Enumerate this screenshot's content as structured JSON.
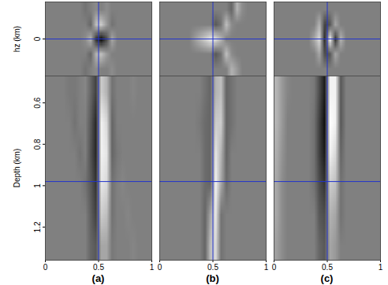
{
  "chart_data": [
    {
      "type": "image",
      "title": "(a)",
      "xlim": [
        0,
        1
      ],
      "xticks": [
        0,
        0.5,
        1
      ],
      "crosshair_x": 0.5,
      "sections": [
        {
          "ylabel": "hz (km)",
          "ylim": [
            -0.35,
            0.35
          ],
          "yticks": [
            0
          ],
          "tick_labels": "y",
          "crosshair_y": 0,
          "cells": [
            [
              0,
              0,
              0,
              0,
              0,
              0,
              0,
              -0.1,
              0,
              0.1,
              0,
              0.1,
              0,
              0,
              0,
              0,
              0,
              0,
              0,
              0
            ],
            [
              0,
              0,
              0,
              0,
              0,
              0,
              0,
              0,
              -0.2,
              0.5,
              0.6,
              0.2,
              -0.1,
              0,
              0,
              0,
              0,
              0,
              0,
              0
            ],
            [
              0,
              0,
              0,
              0,
              0,
              0,
              0,
              0.1,
              0.4,
              -0.6,
              -0.9,
              -0.4,
              0.3,
              0,
              0,
              0,
              0,
              0,
              0,
              0
            ],
            [
              0,
              0,
              0,
              0,
              0,
              0,
              0,
              0,
              -0.2,
              0.4,
              0.5,
              0.2,
              0,
              0,
              0,
              0,
              0,
              0,
              0,
              0
            ],
            [
              0,
              0,
              0,
              0,
              0,
              0,
              0,
              -0.1,
              0,
              0.1,
              0,
              0,
              0.1,
              0,
              0,
              0,
              0,
              0,
              0,
              0
            ]
          ]
        },
        {
          "ylabel": "Depth (km)",
          "ylim": [
            0.47,
            1.36
          ],
          "yticks": [
            0.6,
            0.8,
            1,
            1.2
          ],
          "crosshair_y": 0.98,
          "cells": [
            [
              0,
              0,
              0,
              0,
              -0.05,
              -0.05,
              0,
              0.05,
              -0.2,
              -0.5,
              0.6,
              0.4,
              -0.1,
              0,
              0,
              0,
              0.05,
              0,
              0,
              0
            ],
            [
              0,
              0,
              0,
              0,
              0,
              -0.1,
              0,
              0,
              -0.3,
              -0.7,
              0.9,
              0.7,
              -0.2,
              0,
              0,
              0,
              0,
              0,
              0,
              0
            ],
            [
              0,
              0,
              0,
              0,
              0,
              0,
              -0.1,
              0,
              -0.35,
              -0.7,
              0.9,
              0.8,
              -0.2,
              -0.05,
              0,
              0,
              0,
              0,
              0,
              0
            ],
            [
              0,
              0,
              0,
              0,
              0,
              0,
              0,
              -0.1,
              -0.3,
              -0.6,
              0.8,
              0.7,
              -0.1,
              0,
              0.05,
              0,
              0,
              0,
              0,
              0
            ],
            [
              0,
              0,
              0,
              0,
              0,
              0,
              0,
              0,
              -0.25,
              -0.5,
              0.6,
              0.5,
              -0.1,
              0,
              0,
              0.05,
              0,
              0,
              0,
              0
            ],
            [
              0,
              0,
              0,
              0,
              0,
              0,
              0,
              0,
              -0.2,
              -0.3,
              0.3,
              0.3,
              -0.05,
              0,
              0,
              0,
              0.05,
              0,
              0,
              0
            ]
          ]
        }
      ]
    },
    {
      "type": "image",
      "title": "(b)",
      "xlim": [
        0,
        1
      ],
      "xticks": [
        0,
        0.5,
        1
      ],
      "crosshair_x": 0.5,
      "sections": [
        {
          "ylim": [
            -0.35,
            0.35
          ],
          "tick_labels": false,
          "crosshair_y": 0,
          "cells": [
            [
              0,
              0,
              0,
              0,
              0,
              0,
              0,
              0,
              0,
              0,
              0,
              0,
              0,
              -0.2,
              0.4,
              0.1,
              0,
              0,
              0,
              0
            ],
            [
              0,
              0,
              0,
              0,
              0,
              0,
              0,
              0,
              0,
              0,
              -0.3,
              -0.1,
              0.5,
              0.1,
              0,
              0,
              0,
              0,
              0,
              0
            ],
            [
              0,
              0,
              0,
              0,
              0,
              0,
              0.2,
              0.4,
              0.6,
              0.8,
              0.7,
              0.4,
              0,
              0,
              0,
              0,
              0,
              0,
              0,
              0
            ],
            [
              0,
              0,
              0,
              0,
              0,
              0,
              0,
              0,
              0,
              0,
              -0.3,
              -0.1,
              0.5,
              0.1,
              0,
              0,
              0,
              0,
              0,
              0
            ],
            [
              0,
              0,
              0,
              0,
              0,
              0,
              0,
              0,
              0,
              0,
              0,
              0,
              0,
              0.4,
              0.2,
              0,
              0,
              0,
              0,
              0
            ]
          ]
        },
        {
          "ylim": [
            0.47,
            1.36
          ],
          "tick_labels": "x",
          "crosshair_y": 0.98,
          "cells": [
            [
              0,
              0,
              0,
              0,
              0,
              0,
              0,
              0,
              -0.1,
              -0.2,
              0.4,
              0.5,
              -0.2,
              -0.1,
              0,
              0,
              0,
              0,
              0,
              0
            ],
            [
              0,
              0,
              0,
              0,
              0,
              0,
              0,
              -0.05,
              -0.15,
              -0.2,
              0.6,
              0.6,
              -0.2,
              -0.1,
              0,
              0,
              0,
              0,
              0,
              0
            ],
            [
              0,
              0,
              0,
              0,
              0,
              0,
              0,
              0,
              -0.15,
              -0.2,
              0.8,
              0.4,
              -0.2,
              0,
              0,
              0,
              0,
              0,
              0,
              0
            ],
            [
              0,
              0,
              0,
              0,
              0,
              0,
              0,
              0,
              -0.15,
              -0.2,
              0.9,
              0.3,
              -0.15,
              0,
              0,
              0,
              0,
              0,
              0,
              0
            ],
            [
              0,
              0,
              0,
              0,
              0,
              0,
              0,
              0,
              -0.2,
              0.3,
              0.8,
              -0.1,
              0,
              0,
              0,
              0,
              0,
              0,
              0,
              0
            ],
            [
              0,
              0,
              0,
              0,
              0,
              0,
              0,
              0,
              -0.2,
              0.5,
              0.7,
              -0.1,
              0,
              0,
              0,
              0,
              0,
              0,
              0,
              0
            ]
          ]
        }
      ]
    },
    {
      "type": "image",
      "title": "(c)",
      "xlim": [
        0,
        1
      ],
      "xticks": [
        0,
        0.5,
        1
      ],
      "crosshair_x": 0.5,
      "sections": [
        {
          "ylim": [
            -0.35,
            0.35
          ],
          "tick_labels": false,
          "crosshair_y": 0,
          "cells": [
            [
              0,
              0,
              0,
              0,
              0,
              0,
              0,
              0,
              0,
              0,
              0,
              0,
              0,
              0,
              0,
              0,
              0,
              0,
              0,
              0
            ],
            [
              0,
              0,
              0,
              0,
              0,
              0,
              0,
              0,
              0.4,
              -0.5,
              -0.3,
              0.3,
              0,
              0,
              0,
              0,
              0,
              0,
              0,
              0
            ],
            [
              0,
              0,
              0,
              0,
              0,
              0,
              0,
              0.3,
              0.7,
              -0.7,
              0.9,
              -0.6,
              0.4,
              0,
              0,
              0,
              0,
              0,
              0,
              0
            ],
            [
              0,
              0,
              0,
              0,
              0,
              0,
              0,
              0,
              0.3,
              -0.4,
              -0.3,
              0.3,
              0,
              0,
              0,
              0,
              0,
              0,
              0,
              0
            ],
            [
              0,
              0,
              0,
              0,
              0,
              0,
              0,
              0,
              0,
              0,
              0,
              0,
              0,
              0,
              0,
              0,
              0,
              0,
              0,
              0
            ]
          ]
        },
        {
          "ylim": [
            0.47,
            1.36
          ],
          "tick_labels": "x",
          "crosshair_y": 0.98,
          "cells": [
            [
              0.4,
              0.2,
              0.05,
              0,
              0,
              0,
              0,
              -0.05,
              -0.4,
              -0.8,
              0.9,
              0.9,
              -0.3,
              0,
              0,
              0,
              0,
              0,
              0,
              0
            ],
            [
              0.4,
              0.2,
              0,
              0,
              0,
              0,
              0,
              -0.1,
              -0.5,
              -0.9,
              1,
              0.9,
              -0.3,
              0,
              0,
              0,
              0,
              0,
              0,
              0
            ],
            [
              0.35,
              0.15,
              0,
              0,
              0,
              0,
              0,
              -0.1,
              -0.5,
              -0.8,
              0.9,
              0.7,
              -0.2,
              0,
              0,
              0,
              0,
              0,
              0,
              0
            ],
            [
              0.3,
              0.1,
              0,
              0,
              0,
              0,
              0,
              -0.1,
              -0.4,
              -0.6,
              0.6,
              0.5,
              -0.1,
              0,
              0,
              0,
              0,
              0,
              0,
              0
            ],
            [
              0.3,
              0.1,
              0,
              0,
              0,
              0,
              0,
              0,
              -0.3,
              -0.4,
              0.4,
              0.3,
              -0.1,
              0,
              0,
              0,
              0,
              0,
              0,
              0
            ],
            [
              0.25,
              0.1,
              0,
              0,
              0,
              0,
              0,
              0,
              -0.2,
              -0.3,
              0.3,
              0.2,
              0,
              0,
              0,
              0,
              0,
              0,
              0,
              0
            ]
          ]
        }
      ]
    }
  ]
}
